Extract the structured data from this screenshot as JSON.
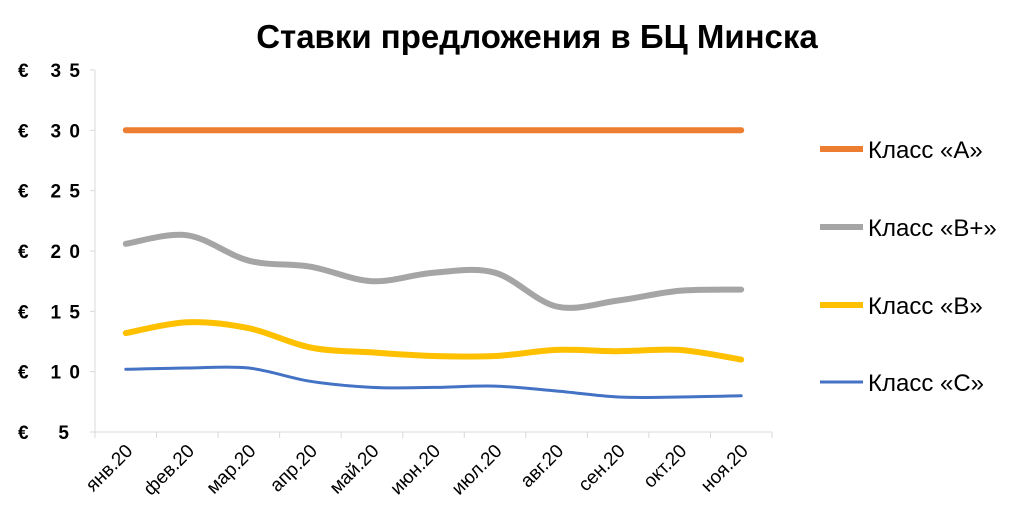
{
  "chart_data": {
    "type": "line",
    "title": "Ставки предложения в БЦ Минска",
    "categories": [
      "янв.20",
      "фев.20",
      "мар.20",
      "апр.20",
      "май.20",
      "июн.20",
      "июл.20",
      "авг.20",
      "сен.20",
      "окт.20",
      "ноя.20"
    ],
    "ylim": [
      5,
      35
    ],
    "yticks": [
      5,
      10,
      15,
      20,
      25,
      30,
      35
    ],
    "ytick_prefix": "€",
    "grid": false,
    "legend_position": "right",
    "series": [
      {
        "name": "Класс «A»",
        "color": "#ED7D31",
        "width": 6,
        "values": [
          30,
          30,
          30,
          30,
          30,
          30,
          30,
          30,
          30,
          30,
          30
        ]
      },
      {
        "name": "Класс «B+»",
        "color": "#A5A5A5",
        "width": 6,
        "values": [
          20.6,
          21.3,
          19.2,
          18.7,
          17.5,
          18.2,
          18.2,
          15.4,
          15.9,
          16.7,
          16.8
        ]
      },
      {
        "name": "Класс «B»",
        "color": "#FFC000",
        "width": 6,
        "values": [
          13.2,
          14.1,
          13.6,
          12.0,
          11.6,
          11.3,
          11.3,
          11.8,
          11.7,
          11.8,
          11.0
        ]
      },
      {
        "name": "Класс «C»",
        "color": "#4472C4",
        "width": 3,
        "values": [
          10.2,
          10.3,
          10.3,
          9.2,
          8.7,
          8.7,
          8.8,
          8.4,
          7.9,
          7.9,
          8.0
        ]
      }
    ]
  }
}
